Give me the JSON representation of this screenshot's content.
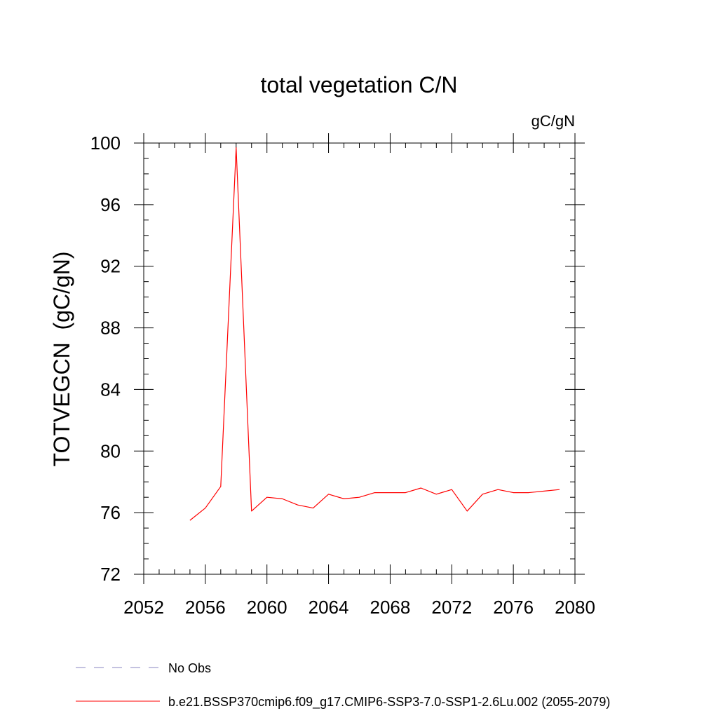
{
  "chart_data": {
    "type": "line",
    "title": "total vegetation C/N",
    "units_label": "gC/gN",
    "ylabel": "TOTVEGCN  (gC/gN)",
    "xlabel": "",
    "xlim": [
      2052,
      2080
    ],
    "ylim": [
      72,
      100
    ],
    "x_ticks": [
      2052,
      2056,
      2060,
      2064,
      2068,
      2072,
      2076,
      2080
    ],
    "y_ticks": [
      72,
      76,
      80,
      84,
      88,
      92,
      96,
      100
    ],
    "x_minor_step": 1,
    "y_minor_step": 1,
    "grid": false,
    "legend_position": "bottom",
    "series": [
      {
        "name": "No Obs",
        "color": "#8a86c2",
        "style": "dashed",
        "x": [],
        "y": []
      },
      {
        "name": "b.e21.BSSP370cmip6.f09_g17.CMIP6-SSP3-7.0-SSP1-2.6Lu.002 (2055-2079)",
        "color": "#ff0000",
        "style": "solid",
        "x": [
          2055,
          2056,
          2057,
          2058,
          2059,
          2060,
          2061,
          2062,
          2063,
          2064,
          2065,
          2066,
          2067,
          2068,
          2069,
          2070,
          2071,
          2072,
          2073,
          2074,
          2075,
          2076,
          2077,
          2078,
          2079
        ],
        "y": [
          75.5,
          76.3,
          77.7,
          99.7,
          76.1,
          77.0,
          76.9,
          76.5,
          76.3,
          77.2,
          76.9,
          77.0,
          77.3,
          77.3,
          77.3,
          77.6,
          77.2,
          77.5,
          76.1,
          77.2,
          77.5,
          77.3,
          77.3,
          77.4,
          77.5
        ]
      }
    ]
  }
}
